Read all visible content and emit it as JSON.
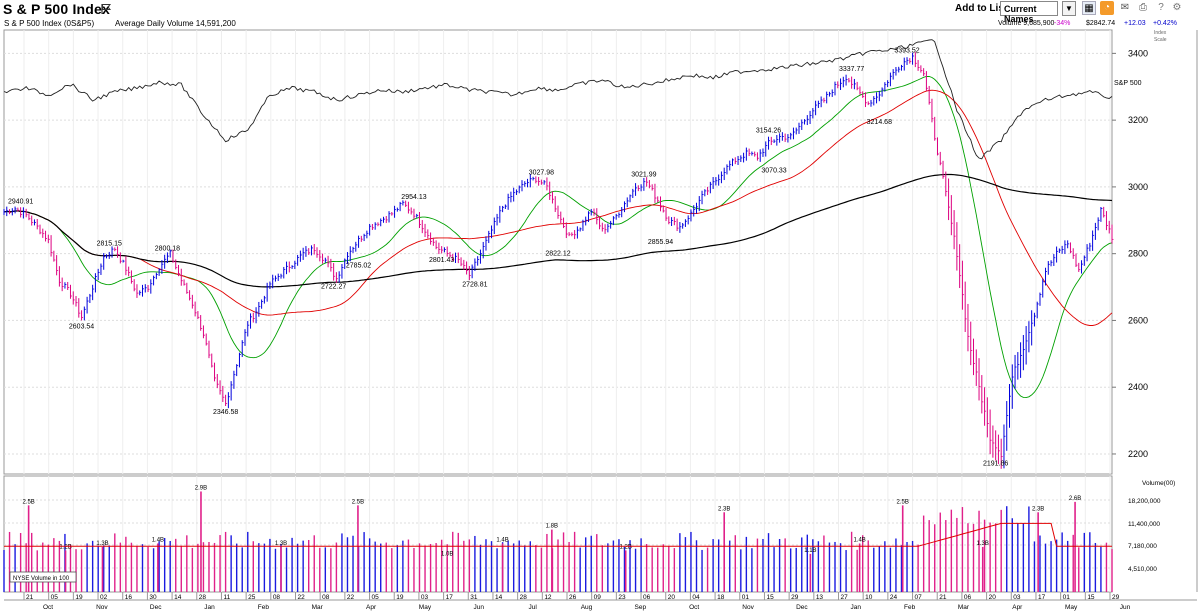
{
  "header": {
    "title": "S & P 500 Index",
    "add_to_list_label": "Add to List:",
    "list_value": "Current Names"
  },
  "info": {
    "symbol_line": "S & P 500 Index   (0S&P5)",
    "avg_volume": "Average Daily Volume 14,591,200",
    "volume": "Volume 9,685,900",
    "volume_pct": "-34%",
    "price": "$2842.74",
    "change": "+12.03",
    "change_pct": "+0.42%",
    "scale_label_1": "Index",
    "scale_label_2": "Scale"
  },
  "chart_data": {
    "type": "line",
    "price_axis": {
      "ticks": [
        2200,
        2400,
        2600,
        2800,
        3000,
        3200,
        3400
      ],
      "ylim": [
        2140,
        3470
      ]
    },
    "series": [
      {
        "name": "S&P 500",
        "role": "relative-strength-line"
      }
    ],
    "price_series": [
      [
        0,
        2925
      ],
      [
        4,
        2935
      ],
      [
        8,
        2915
      ],
      [
        12,
        2880
      ],
      [
        16,
        2840
      ],
      [
        20,
        2720
      ],
      [
        24,
        2680
      ],
      [
        28,
        2610
      ],
      [
        32,
        2700
      ],
      [
        36,
        2790
      ],
      [
        40,
        2815
      ],
      [
        44,
        2755
      ],
      [
        48,
        2680
      ],
      [
        52,
        2700
      ],
      [
        56,
        2760
      ],
      [
        60,
        2800
      ],
      [
        64,
        2720
      ],
      [
        68,
        2650
      ],
      [
        72,
        2560
      ],
      [
        76,
        2420
      ],
      [
        80,
        2350
      ],
      [
        84,
        2470
      ],
      [
        88,
        2590
      ],
      [
        92,
        2640
      ],
      [
        96,
        2710
      ],
      [
        100,
        2740
      ],
      [
        104,
        2770
      ],
      [
        108,
        2800
      ],
      [
        112,
        2815
      ],
      [
        116,
        2780
      ],
      [
        120,
        2725
      ],
      [
        124,
        2800
      ],
      [
        128,
        2840
      ],
      [
        132,
        2880
      ],
      [
        136,
        2900
      ],
      [
        140,
        2920
      ],
      [
        144,
        2950
      ],
      [
        148,
        2920
      ],
      [
        152,
        2870
      ],
      [
        156,
        2820
      ],
      [
        160,
        2800
      ],
      [
        164,
        2780
      ],
      [
        168,
        2735
      ],
      [
        172,
        2800
      ],
      [
        176,
        2870
      ],
      [
        180,
        2940
      ],
      [
        184,
        2980
      ],
      [
        188,
        3010
      ],
      [
        192,
        3025
      ],
      [
        196,
        3000
      ],
      [
        200,
        2920
      ],
      [
        204,
        2850
      ],
      [
        208,
        2880
      ],
      [
        212,
        2930
      ],
      [
        216,
        2870
      ],
      [
        220,
        2900
      ],
      [
        224,
        2950
      ],
      [
        228,
        3000
      ],
      [
        232,
        3015
      ],
      [
        236,
        2960
      ],
      [
        240,
        2900
      ],
      [
        244,
        2880
      ],
      [
        248,
        2920
      ],
      [
        252,
        2970
      ],
      [
        256,
        3010
      ],
      [
        260,
        3050
      ],
      [
        264,
        3080
      ],
      [
        268,
        3100
      ],
      [
        272,
        3090
      ],
      [
        276,
        3130
      ],
      [
        280,
        3150
      ],
      [
        284,
        3150
      ],
      [
        288,
        3190
      ],
      [
        292,
        3230
      ],
      [
        296,
        3260
      ],
      [
        300,
        3300
      ],
      [
        304,
        3330
      ],
      [
        308,
        3290
      ],
      [
        312,
        3250
      ],
      [
        316,
        3280
      ],
      [
        320,
        3330
      ],
      [
        324,
        3370
      ],
      [
        328,
        3390
      ],
      [
        332,
        3340
      ],
      [
        336,
        3150
      ],
      [
        340,
        2980
      ],
      [
        344,
        2800
      ],
      [
        348,
        2550
      ],
      [
        352,
        2400
      ],
      [
        356,
        2250
      ],
      [
        360,
        2200
      ],
      [
        364,
        2430
      ],
      [
        368,
        2520
      ],
      [
        372,
        2620
      ],
      [
        376,
        2750
      ],
      [
        380,
        2800
      ],
      [
        384,
        2830
      ],
      [
        388,
        2750
      ],
      [
        392,
        2830
      ],
      [
        396,
        2930
      ],
      [
        400,
        2850
      ]
    ],
    "moving_averages": [
      {
        "name": "MA21",
        "color": "#00a000"
      },
      {
        "name": "MA50",
        "color": "#e00000"
      },
      {
        "name": "MA200",
        "color": "#000000"
      }
    ],
    "annotations": [
      {
        "label": "2940.91",
        "x": 6,
        "y": 2940.91
      },
      {
        "label": "2603.54",
        "x": 28,
        "y": 2603.54
      },
      {
        "label": "2815.15",
        "x": 38,
        "y": 2815.15
      },
      {
        "label": "2800.18",
        "x": 59,
        "y": 2800.18
      },
      {
        "label": "2346.58",
        "x": 80,
        "y": 2346.58
      },
      {
        "label": "2722.27",
        "x": 119,
        "y": 2722.27
      },
      {
        "label": "2785.02",
        "x": 128,
        "y": 2785.02
      },
      {
        "label": "2954.13",
        "x": 148,
        "y": 2954.13
      },
      {
        "label": "2801.43",
        "x": 158,
        "y": 2801.43
      },
      {
        "label": "2728.81",
        "x": 170,
        "y": 2728.81
      },
      {
        "label": "3027.98",
        "x": 194,
        "y": 3027.98
      },
      {
        "label": "2822.12",
        "x": 200,
        "y": 2822.12
      },
      {
        "label": "3021.99",
        "x": 231,
        "y": 3021.99
      },
      {
        "label": "2855.94",
        "x": 237,
        "y": 2855.94
      },
      {
        "label": "3154.26",
        "x": 276,
        "y": 3154.26
      },
      {
        "label": "3070.33",
        "x": 278,
        "y": 3070.33
      },
      {
        "label": "3337.77",
        "x": 306,
        "y": 3337.77
      },
      {
        "label": "3214.68",
        "x": 316,
        "y": 3214.68
      },
      {
        "label": "3393.52",
        "x": 326,
        "y": 3393.52
      },
      {
        "label": "2191.86",
        "x": 358,
        "y": 2191.86
      }
    ],
    "rs_label": "S&P 500",
    "volume": {
      "title": "Volume(00)",
      "ticks": [
        "18,200,000",
        "11,400,000",
        "7,180,000",
        "4,510,000"
      ],
      "ma_label": "NYSE Volume in 100",
      "peaks": [
        {
          "label": "2.5B",
          "x": 8
        },
        {
          "label": "1.2B",
          "x": 20
        },
        {
          "label": "1.3B",
          "x": 32
        },
        {
          "label": "1.4B",
          "x": 50
        },
        {
          "label": "2.9B",
          "x": 64
        },
        {
          "label": "1.3B",
          "x": 90
        },
        {
          "label": "2.5B",
          "x": 115
        },
        {
          "label": "1.0B",
          "x": 144
        },
        {
          "label": "1.4B",
          "x": 162
        },
        {
          "label": "1.8B",
          "x": 178
        },
        {
          "label": "1.2B",
          "x": 202
        },
        {
          "label": "2.3B",
          "x": 234
        },
        {
          "label": "1.1B",
          "x": 262
        },
        {
          "label": "1.4B",
          "x": 278
        },
        {
          "label": "2.5B",
          "x": 292
        },
        {
          "label": "1.3B",
          "x": 318
        },
        {
          "label": "2.3B",
          "x": 336
        },
        {
          "label": "2.6B",
          "x": 348
        }
      ]
    },
    "x_axis": {
      "day_ticks": [
        "21",
        "05",
        "19",
        "02",
        "16",
        "30",
        "14",
        "28",
        "11",
        "25",
        "08",
        "22",
        "08",
        "22",
        "05",
        "19",
        "03",
        "17",
        "31",
        "14",
        "28",
        "12",
        "26",
        "09",
        "23",
        "06",
        "20",
        "04",
        "18",
        "01",
        "15",
        "29",
        "13",
        "27",
        "10",
        "24",
        "07",
        "21",
        "06",
        "20",
        "03",
        "17",
        "01",
        "15",
        "29"
      ],
      "months": [
        "Oct",
        "Nov",
        "Dec",
        "Jan",
        "Feb",
        "Mar",
        "Apr",
        "May",
        "Jun",
        "Jul",
        "Aug",
        "Sep",
        "Oct",
        "Nov",
        "Dec",
        "Jan",
        "Feb",
        "Mar",
        "Apr",
        "May",
        "Jun"
      ]
    }
  }
}
